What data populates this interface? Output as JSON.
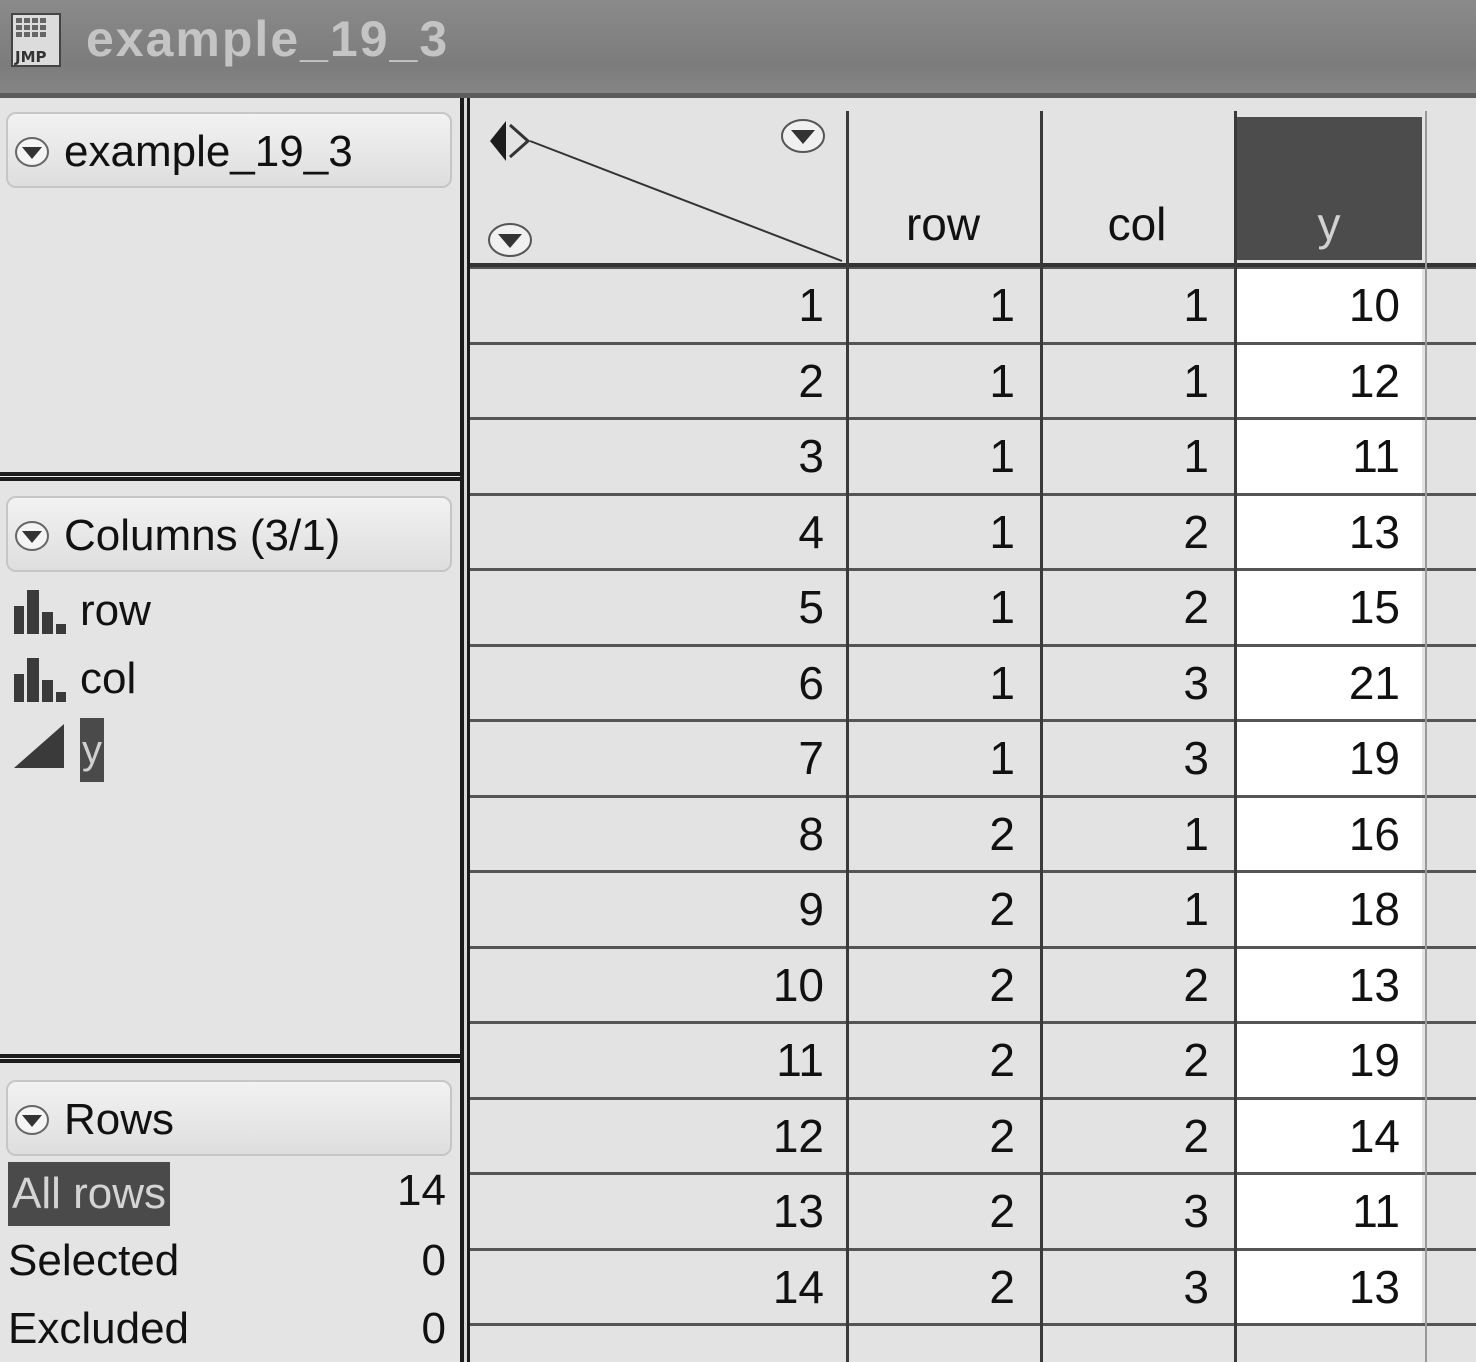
{
  "window": {
    "title": "example_19_3",
    "app_icon": "jmp-icon"
  },
  "table_panel": {
    "title": "example_19_3"
  },
  "columns_panel": {
    "title": "Columns (3/1)",
    "items": [
      {
        "name": "row",
        "icon": "nominal-bar-icon",
        "selected": false
      },
      {
        "name": "col",
        "icon": "nominal-bar-icon",
        "selected": false
      },
      {
        "name": "y",
        "icon": "continuous-triangle-icon",
        "selected": true
      }
    ]
  },
  "rows_panel": {
    "title": "Rows",
    "states": [
      {
        "label": "All rows",
        "count": "14",
        "selected": true
      },
      {
        "label": "Selected",
        "count": "0",
        "selected": false
      },
      {
        "label": "Excluded",
        "count": "0",
        "selected": false
      }
    ]
  },
  "grid": {
    "headers": [
      "row",
      "col",
      "y"
    ],
    "selected_column": "y",
    "rows": [
      {
        "n": "1",
        "row": "1",
        "col": "1",
        "y": "10"
      },
      {
        "n": "2",
        "row": "1",
        "col": "1",
        "y": "12"
      },
      {
        "n": "3",
        "row": "1",
        "col": "1",
        "y": "11"
      },
      {
        "n": "4",
        "row": "1",
        "col": "2",
        "y": "13"
      },
      {
        "n": "5",
        "row": "1",
        "col": "2",
        "y": "15"
      },
      {
        "n": "6",
        "row": "1",
        "col": "3",
        "y": "21"
      },
      {
        "n": "7",
        "row": "1",
        "col": "3",
        "y": "19"
      },
      {
        "n": "8",
        "row": "2",
        "col": "1",
        "y": "16"
      },
      {
        "n": "9",
        "row": "2",
        "col": "1",
        "y": "18"
      },
      {
        "n": "10",
        "row": "2",
        "col": "2",
        "y": "13"
      },
      {
        "n": "11",
        "row": "2",
        "col": "2",
        "y": "19"
      },
      {
        "n": "12",
        "row": "2",
        "col": "2",
        "y": "14"
      },
      {
        "n": "13",
        "row": "2",
        "col": "3",
        "y": "11"
      },
      {
        "n": "14",
        "row": "2",
        "col": "3",
        "y": "13"
      }
    ]
  },
  "colors": {
    "selection": "#4a4a4a",
    "titlebar": "#828282",
    "background": "#e3e3e3"
  }
}
